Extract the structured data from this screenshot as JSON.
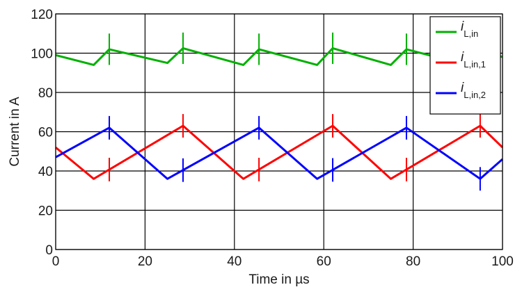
{
  "chart_data": {
    "type": "line",
    "title": "",
    "xlabel": "Time in µs",
    "ylabel": "Current in A",
    "xlim": [
      0,
      100
    ],
    "ylim": [
      0,
      120
    ],
    "xticks": [
      "0",
      "20",
      "40",
      "60",
      "80",
      "100"
    ],
    "yticks": [
      "0",
      "20",
      "40",
      "60",
      "80",
      "100",
      "120"
    ],
    "grid": true,
    "legend_position": "top-right",
    "series": [
      {
        "name": "i_L,in",
        "legend_symbol": "i",
        "legend_subscript": "L,in",
        "color": "#00b000",
        "x": [
          0,
          8.5,
          12,
          25,
          28.5,
          42,
          45.5,
          58.5,
          62,
          75,
          78.5,
          92,
          95,
          100
        ],
        "y": [
          99,
          94,
          102,
          95,
          102.5,
          94,
          102,
          94,
          102.5,
          94,
          102,
          94,
          102,
          98
        ]
      },
      {
        "name": "i_L,in,1",
        "legend_symbol": "i",
        "legend_subscript": "L,in,1",
        "color": "#ff0000",
        "x": [
          0,
          8.5,
          28.5,
          42,
          62,
          75,
          95,
          100
        ],
        "y": [
          52,
          36,
          63,
          36,
          63,
          36,
          63,
          52
        ]
      },
      {
        "name": "i_L,in,2",
        "legend_symbol": "i",
        "legend_subscript": "L,in,2",
        "color": "#0000ff",
        "x": [
          0,
          12,
          25,
          45.5,
          58.5,
          78.5,
          95,
          100
        ],
        "y": [
          47,
          62,
          36,
          62,
          36,
          62,
          36,
          46
        ]
      }
    ],
    "spikes_x": [
      12,
      28.5,
      45.5,
      62,
      78.5,
      95
    ]
  }
}
